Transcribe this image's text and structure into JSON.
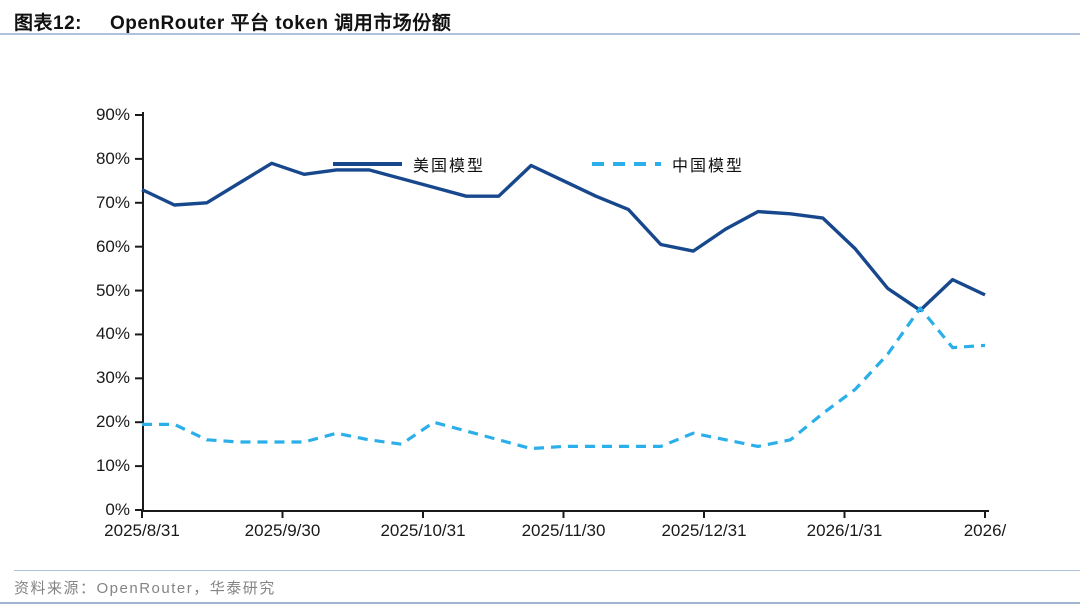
{
  "page": {
    "title_prefix": "图表12:",
    "title_text": "OpenRouter 平台 token 调用市场份额",
    "source_text": "资料来源：OpenRouter，华泰研究"
  },
  "colors": {
    "us_line": "#17478c",
    "cn_line": "#2aafea",
    "axis": "#1a1a1a",
    "title_underline": "#aec3db",
    "source_text": "#848484"
  },
  "chart_data": {
    "type": "line",
    "title": "OpenRouter 平台 token 调用市场份额",
    "xlabel": "",
    "ylabel": "",
    "ylim": [
      0,
      90
    ],
    "grid": false,
    "legend_position": "top",
    "cadence": "weekly points from 2025/8/31",
    "y_tick_labels": [
      "0%",
      "10%",
      "20%",
      "30%",
      "40%",
      "50%",
      "60%",
      "70%",
      "80%",
      "90%"
    ],
    "x_tick_labels": [
      "2025/8/31",
      "2025/9/30",
      "2025/10/31",
      "2025/11/30",
      "2025/12/31",
      "2026/1/31",
      "2026/"
    ],
    "series": [
      {
        "name": "美国模型",
        "style": "solid",
        "color": "#17478c",
        "values": [
          73,
          69.5,
          70,
          74.5,
          79,
          76.5,
          77.5,
          77.5,
          75.5,
          73.5,
          71.5,
          71.5,
          78.5,
          75,
          71.5,
          68.5,
          60.5,
          59,
          64,
          68,
          67.5,
          66.5,
          59.5,
          50.5,
          45.5,
          52.5,
          49
        ]
      },
      {
        "name": "中国模型",
        "style": "dashed",
        "color": "#2aafea",
        "values": [
          19.5,
          19.5,
          16,
          15.5,
          15.5,
          15.5,
          17.5,
          16,
          15,
          20,
          18,
          16,
          14,
          14.5,
          14.5,
          14.5,
          14.5,
          17.5,
          16,
          14.5,
          16,
          22,
          27.5,
          35.5,
          46,
          37,
          37.5
        ]
      }
    ]
  }
}
